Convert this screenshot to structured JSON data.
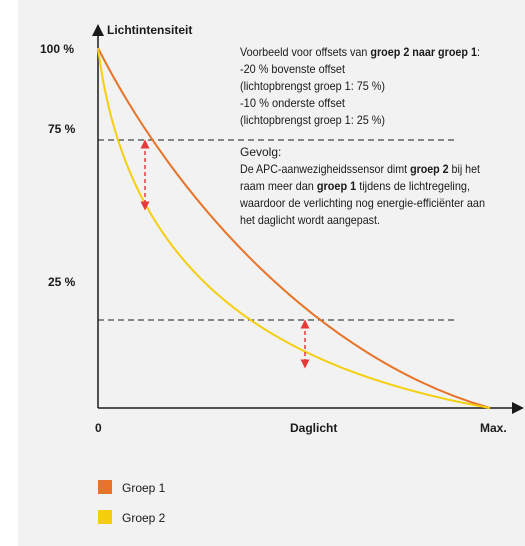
{
  "axis": {
    "y_label": "Lichtintensiteit",
    "y_levels": [
      "100 %",
      "75 %",
      "25 %"
    ],
    "x_labels": [
      "0",
      "Daglicht",
      "Max."
    ]
  },
  "note": {
    "intro": [
      "Voorbeeld voor offsets van ",
      "groep 2 naar groep 1",
      ":"
    ],
    "lines": [
      "-20 % bovenste offset",
      "(lichtopbrengst groep 1: 75 %)",
      "-10 % onderste offset",
      "(lichtopbrengst groep 1: 25 %)",
      "Gevolg:"
    ],
    "result": [
      [
        "De APC-aanwezigheidssensor dimt ",
        "groep 2",
        " bij het"
      ],
      [
        "raam meer dan ",
        "groep 1",
        " tijdens de lichtregeling,"
      ],
      [
        "waardoor de verlichting nog energie-efficiënter aan"
      ],
      [
        "het daglicht wordt aangepast."
      ]
    ]
  },
  "legend": [
    {
      "name": "Groep 1",
      "color": "#e8742a"
    },
    {
      "name": "Groep 2",
      "color": "#f5cf0f"
    }
  ]
}
